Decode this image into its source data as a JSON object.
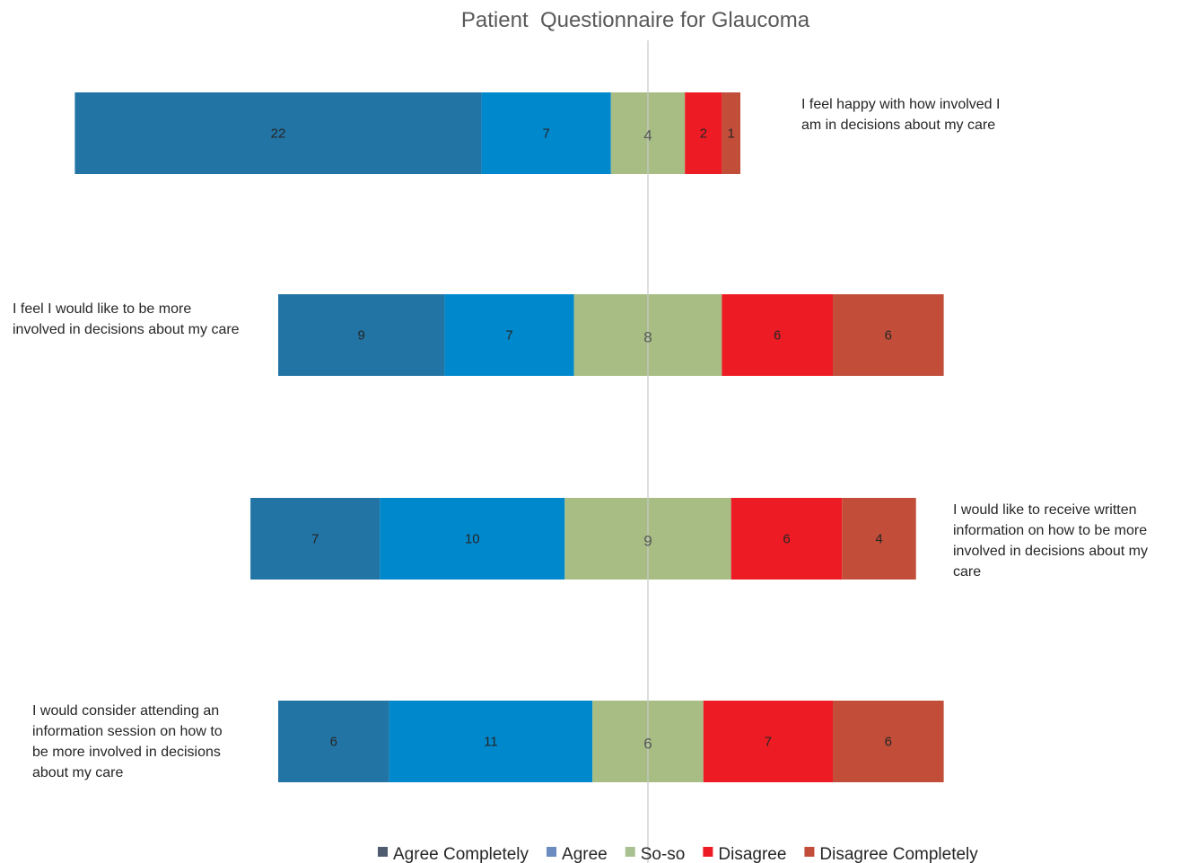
{
  "chart_data": {
    "type": "bar",
    "orientation": "horizontal",
    "stacked": true,
    "diverging": true,
    "title": "Patient  Questionnaire for Glaucoma",
    "categories": [
      "I feel happy with how involved I am in decisions about my care",
      "I feel I would like to be more involved in decisions about my care",
      "I would like to receive written information on how to be more involved in decisions about my care",
      "I would consider attending an information session on how to be more involved in decisions about my care"
    ],
    "category_label_lines": [
      [
        "I feel happy with how involved I",
        "am in decisions about my care"
      ],
      [
        "I feel I would like to be more",
        "involved in decisions about my care"
      ],
      [
        "I would like to receive written",
        "information on how to be more",
        "involved in decisions about my",
        "care"
      ],
      [
        "I would consider attending an",
        "information session on how to",
        "be more involved in decisions",
        "about my care"
      ]
    ],
    "series": [
      {
        "name": "Agree Completely",
        "values": [
          22,
          9,
          7,
          6
        ],
        "color": "#2274A5",
        "legend_color": "#4F5B6E"
      },
      {
        "name": "Agree",
        "values": [
          7,
          7,
          10,
          11
        ],
        "color": "#0088CC",
        "legend_color": "#6A8CC0"
      },
      {
        "name": "So-so",
        "values": [
          4,
          8,
          9,
          6
        ],
        "color": "#A7BD84",
        "legend_color": "#A9C191"
      },
      {
        "name": "Disagree",
        "values": [
          2,
          6,
          6,
          7
        ],
        "color": "#ED1C24",
        "legend_color": "#ED1C24"
      },
      {
        "name": "Disagree Completely",
        "values": [
          1,
          6,
          4,
          6
        ],
        "color": "#C24E3A",
        "legend_color": "#C24E3A"
      }
    ],
    "center": "middle of So-so segment",
    "legend": "bottom",
    "grid": false
  }
}
